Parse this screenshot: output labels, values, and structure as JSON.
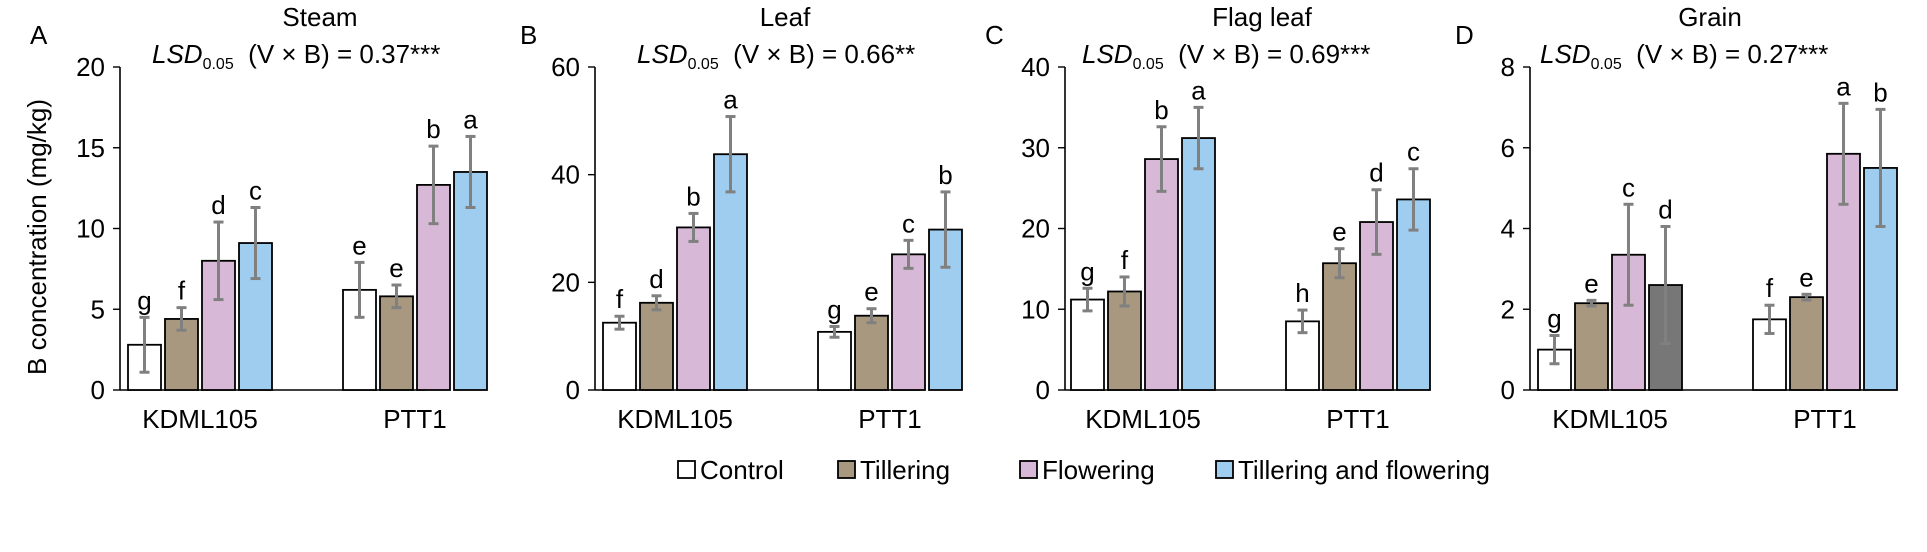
{
  "ylabel": "B concentration (mg/kg)",
  "legend": {
    "placement": "bottom-center",
    "items": [
      {
        "label": "Control",
        "color": "#ffffff"
      },
      {
        "label": "Tillering",
        "color": "#a89880"
      },
      {
        "label": "Flowering",
        "color": "#d7b8d6"
      },
      {
        "label": "Tillering and flowering",
        "color": "#9fcdf0"
      }
    ]
  },
  "chart_data": [
    {
      "type": "bar",
      "panel": "A",
      "title": "Steam",
      "lsd": {
        "label": "LSD",
        "sub": "0.05",
        "mid": "(V × B) = ",
        "value": "0.37",
        "sig": "***"
      },
      "ylim": [
        0,
        20
      ],
      "yticks": [
        "0",
        "5",
        "10",
        "15",
        "20"
      ],
      "categories": [
        "KDML105",
        "PTT1"
      ],
      "series": [
        {
          "name": "Control",
          "values": [
            2.8,
            6.2
          ],
          "errors": [
            1.7,
            1.7
          ],
          "letters": [
            "g",
            "e"
          ]
        },
        {
          "name": "Tillering",
          "values": [
            4.4,
            5.8
          ],
          "errors": [
            0.7,
            0.7
          ],
          "letters": [
            "f",
            "e"
          ]
        },
        {
          "name": "Flowering",
          "values": [
            8.0,
            12.7
          ],
          "errors": [
            2.4,
            2.4
          ],
          "letters": [
            "d",
            "b"
          ]
        },
        {
          "name": "Tillering and flowering",
          "values": [
            9.1,
            13.5
          ],
          "errors": [
            2.2,
            2.2
          ],
          "letters": [
            "c",
            "a"
          ]
        }
      ]
    },
    {
      "type": "bar",
      "panel": "B",
      "title": "Leaf",
      "lsd": {
        "label": "LSD",
        "sub": "0.05",
        "mid": "(V × B) = ",
        "value": "0.66",
        "sig": "**"
      },
      "ylim": [
        0,
        60
      ],
      "yticks": [
        "0",
        "20",
        "40",
        "60"
      ],
      "categories": [
        "KDML105",
        "PTT1"
      ],
      "series": [
        {
          "name": "Control",
          "values": [
            12.5,
            10.8
          ],
          "errors": [
            1.2,
            1.0
          ],
          "letters": [
            "f",
            "g"
          ]
        },
        {
          "name": "Tillering",
          "values": [
            16.2,
            13.8
          ],
          "errors": [
            1.3,
            1.3
          ],
          "letters": [
            "d",
            "e"
          ]
        },
        {
          "name": "Flowering",
          "values": [
            30.2,
            25.2
          ],
          "errors": [
            2.6,
            2.6
          ],
          "letters": [
            "b",
            "c"
          ]
        },
        {
          "name": "Tillering and flowering",
          "values": [
            43.8,
            29.8
          ],
          "errors": [
            7.0,
            7.0
          ],
          "letters": [
            "a",
            "b"
          ]
        }
      ]
    },
    {
      "type": "bar",
      "panel": "C",
      "title": "Flag leaf",
      "lsd": {
        "label": "LSD",
        "sub": "0.05",
        "mid": "(V × B) = ",
        "value": "0.69",
        "sig": "***"
      },
      "ylim": [
        0,
        40
      ],
      "yticks": [
        "0",
        "10",
        "20",
        "30",
        "40"
      ],
      "categories": [
        "KDML105",
        "PTT1"
      ],
      "series": [
        {
          "name": "Control",
          "values": [
            11.2,
            8.5
          ],
          "errors": [
            1.4,
            1.4
          ],
          "letters": [
            "g",
            "h"
          ]
        },
        {
          "name": "Tillering",
          "values": [
            12.2,
            15.7
          ],
          "errors": [
            1.8,
            1.8
          ],
          "letters": [
            "f",
            "e"
          ]
        },
        {
          "name": "Flowering",
          "values": [
            28.6,
            20.8
          ],
          "errors": [
            4.0,
            4.0
          ],
          "letters": [
            "b",
            "d"
          ]
        },
        {
          "name": "Tillering and flowering",
          "values": [
            31.2,
            23.6
          ],
          "errors": [
            3.8,
            3.8
          ],
          "letters": [
            "a",
            "c"
          ]
        }
      ]
    },
    {
      "type": "bar",
      "panel": "D",
      "title": "Grain",
      "lsd": {
        "label": "LSD",
        "sub": "0.05",
        "mid": "(V × B) = ",
        "value": "0.27",
        "sig": "***"
      },
      "ylim": [
        0,
        8
      ],
      "yticks": [
        "0",
        "2",
        "4",
        "6",
        "8"
      ],
      "categories": [
        "KDML105",
        "PTT1"
      ],
      "series": [
        {
          "name": "Control",
          "values": [
            1.0,
            1.75
          ],
          "errors": [
            0.35,
            0.35
          ],
          "letters": [
            "g",
            "f"
          ]
        },
        {
          "name": "Tillering",
          "values": [
            2.15,
            2.3
          ],
          "errors": [
            0.07,
            0.07
          ],
          "letters": [
            "e",
            "e"
          ]
        },
        {
          "name": "Flowering",
          "values": [
            3.35,
            5.85
          ],
          "errors": [
            1.25,
            1.25
          ],
          "letters": [
            "c",
            "a"
          ]
        },
        {
          "name": "Tillering and flowering",
          "values": [
            2.6,
            5.5
          ],
          "errors": [
            1.45,
            1.45
          ],
          "letters": [
            "d",
            "b"
          ],
          "colors": [
            "#777777",
            null
          ]
        }
      ]
    }
  ]
}
